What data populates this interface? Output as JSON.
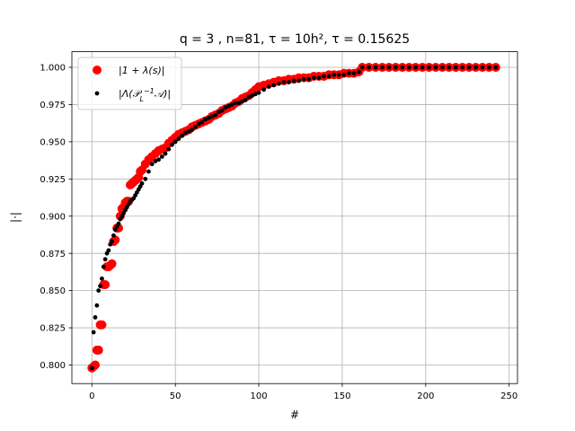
{
  "chart_data": {
    "type": "scatter",
    "title": "q = 3 , n=81, τ = 10h², τ = 0.15625",
    "xlabel": "#",
    "ylabel": "|·|",
    "xlim": [
      -12,
      255
    ],
    "ylim": [
      0.7875,
      1.0105
    ],
    "xticks": [
      0,
      50,
      100,
      150,
      200,
      250
    ],
    "xtick_labels": [
      "0",
      "50",
      "100",
      "150",
      "200",
      "250"
    ],
    "yticks": [
      0.8,
      0.825,
      0.85,
      0.875,
      0.9,
      0.925,
      0.95,
      0.975,
      1.0
    ],
    "ytick_labels": [
      "0.800",
      "0.825",
      "0.850",
      "0.875",
      "0.900",
      "0.925",
      "0.950",
      "0.975",
      "1.000"
    ],
    "grid": true,
    "legend_position": "top-left",
    "count": 243,
    "series": [
      {
        "name": "|1 + λ(s)|",
        "color": "#ff0000",
        "marker": "large-circle",
        "points": [
          [
            0,
            0.798
          ],
          [
            1,
            0.799
          ],
          [
            2,
            0.8
          ],
          [
            3,
            0.81
          ],
          [
            4,
            0.81
          ],
          [
            5,
            0.827
          ],
          [
            6,
            0.827
          ],
          [
            7,
            0.854
          ],
          [
            8,
            0.854
          ],
          [
            9,
            0.866
          ],
          [
            10,
            0.866
          ],
          [
            11,
            0.867
          ],
          [
            12,
            0.868
          ],
          [
            13,
            0.883
          ],
          [
            14,
            0.884
          ],
          [
            15,
            0.892
          ],
          [
            16,
            0.892
          ],
          [
            17,
            0.9
          ],
          [
            18,
            0.905
          ],
          [
            19,
            0.906
          ],
          [
            20,
            0.909
          ],
          [
            21,
            0.91
          ],
          [
            22,
            0.91
          ],
          [
            23,
            0.921
          ],
          [
            24,
            0.922
          ],
          [
            25,
            0.923
          ],
          [
            26,
            0.924
          ],
          [
            27,
            0.925
          ],
          [
            28,
            0.926
          ],
          [
            29,
            0.93
          ],
          [
            30,
            0.931
          ],
          [
            32,
            0.935
          ],
          [
            34,
            0.938
          ],
          [
            36,
            0.94
          ],
          [
            38,
            0.942
          ],
          [
            40,
            0.944
          ],
          [
            42,
            0.945
          ],
          [
            44,
            0.946
          ],
          [
            46,
            0.949
          ],
          [
            48,
            0.951
          ],
          [
            50,
            0.953
          ],
          [
            52,
            0.955
          ],
          [
            54,
            0.956
          ],
          [
            56,
            0.957
          ],
          [
            58,
            0.958
          ],
          [
            60,
            0.96
          ],
          [
            62,
            0.961
          ],
          [
            64,
            0.962
          ],
          [
            66,
            0.963
          ],
          [
            68,
            0.964
          ],
          [
            70,
            0.965
          ],
          [
            72,
            0.967
          ],
          [
            74,
            0.968
          ],
          [
            76,
            0.969
          ],
          [
            78,
            0.971
          ],
          [
            80,
            0.972
          ],
          [
            82,
            0.973
          ],
          [
            84,
            0.974
          ],
          [
            86,
            0.976
          ],
          [
            88,
            0.977
          ],
          [
            90,
            0.979
          ],
          [
            92,
            0.98
          ],
          [
            94,
            0.981
          ],
          [
            96,
            0.983
          ],
          [
            98,
            0.985
          ],
          [
            100,
            0.987
          ],
          [
            103,
            0.988
          ],
          [
            106,
            0.989
          ],
          [
            109,
            0.99
          ],
          [
            112,
            0.991
          ],
          [
            115,
            0.991
          ],
          [
            118,
            0.992
          ],
          [
            121,
            0.992
          ],
          [
            124,
            0.993
          ],
          [
            127,
            0.993
          ],
          [
            130,
            0.993
          ],
          [
            133,
            0.994
          ],
          [
            136,
            0.994
          ],
          [
            139,
            0.994
          ],
          [
            142,
            0.995
          ],
          [
            145,
            0.995
          ],
          [
            148,
            0.995
          ],
          [
            151,
            0.996
          ],
          [
            154,
            0.996
          ],
          [
            157,
            0.996
          ],
          [
            160,
            0.997
          ],
          [
            162,
            1.0
          ],
          [
            166,
            1.0
          ],
          [
            170,
            1.0
          ],
          [
            174,
            1.0
          ],
          [
            178,
            1.0
          ],
          [
            182,
            1.0
          ],
          [
            186,
            1.0
          ],
          [
            190,
            1.0
          ],
          [
            194,
            1.0
          ],
          [
            198,
            1.0
          ],
          [
            202,
            1.0
          ],
          [
            206,
            1.0
          ],
          [
            210,
            1.0
          ],
          [
            214,
            1.0
          ],
          [
            218,
            1.0
          ],
          [
            222,
            1.0
          ],
          [
            226,
            1.0
          ],
          [
            230,
            1.0
          ],
          [
            234,
            1.0
          ],
          [
            238,
            1.0
          ],
          [
            242,
            1.0
          ]
        ]
      },
      {
        "name": "|Λ(P_L⁻¹ A)|",
        "color": "#000000",
        "marker": "small-dot",
        "points": [
          [
            0,
            0.798
          ],
          [
            1,
            0.822
          ],
          [
            2,
            0.832
          ],
          [
            3,
            0.84
          ],
          [
            4,
            0.85
          ],
          [
            5,
            0.853
          ],
          [
            6,
            0.858
          ],
          [
            7,
            0.866
          ],
          [
            8,
            0.871
          ],
          [
            9,
            0.875
          ],
          [
            10,
            0.877
          ],
          [
            11,
            0.881
          ],
          [
            12,
            0.883
          ],
          [
            13,
            0.887
          ],
          [
            14,
            0.891
          ],
          [
            15,
            0.893
          ],
          [
            16,
            0.895
          ],
          [
            17,
            0.898
          ],
          [
            18,
            0.9
          ],
          [
            19,
            0.902
          ],
          [
            20,
            0.904
          ],
          [
            21,
            0.906
          ],
          [
            22,
            0.908
          ],
          [
            23,
            0.91
          ],
          [
            24,
            0.911
          ],
          [
            25,
            0.912
          ],
          [
            26,
            0.914
          ],
          [
            27,
            0.916
          ],
          [
            28,
            0.918
          ],
          [
            29,
            0.92
          ],
          [
            30,
            0.922
          ],
          [
            32,
            0.925
          ],
          [
            34,
            0.93
          ],
          [
            36,
            0.935
          ],
          [
            38,
            0.937
          ],
          [
            40,
            0.938
          ],
          [
            42,
            0.94
          ],
          [
            44,
            0.942
          ],
          [
            46,
            0.945
          ],
          [
            48,
            0.948
          ],
          [
            50,
            0.95
          ],
          [
            52,
            0.952
          ],
          [
            54,
            0.954
          ],
          [
            56,
            0.956
          ],
          [
            58,
            0.957
          ],
          [
            60,
            0.958
          ],
          [
            62,
            0.96
          ],
          [
            64,
            0.962
          ],
          [
            66,
            0.963
          ],
          [
            68,
            0.965
          ],
          [
            70,
            0.966
          ],
          [
            72,
            0.967
          ],
          [
            74,
            0.968
          ],
          [
            76,
            0.97
          ],
          [
            78,
            0.971
          ],
          [
            80,
            0.973
          ],
          [
            82,
            0.974
          ],
          [
            84,
            0.975
          ],
          [
            86,
            0.976
          ],
          [
            88,
            0.976
          ],
          [
            90,
            0.977
          ],
          [
            92,
            0.978
          ],
          [
            94,
            0.98
          ],
          [
            96,
            0.981
          ],
          [
            98,
            0.982
          ],
          [
            100,
            0.983
          ],
          [
            103,
            0.985
          ],
          [
            106,
            0.987
          ],
          [
            109,
            0.988
          ],
          [
            112,
            0.989
          ],
          [
            115,
            0.99
          ],
          [
            118,
            0.99
          ],
          [
            121,
            0.991
          ],
          [
            124,
            0.991
          ],
          [
            127,
            0.992
          ],
          [
            130,
            0.992
          ],
          [
            133,
            0.993
          ],
          [
            136,
            0.993
          ],
          [
            139,
            0.994
          ],
          [
            142,
            0.994
          ],
          [
            145,
            0.995
          ],
          [
            148,
            0.995
          ],
          [
            151,
            0.995
          ],
          [
            154,
            0.996
          ],
          [
            157,
            0.996
          ],
          [
            160,
            0.997
          ],
          [
            162,
            1.0
          ],
          [
            166,
            1.0
          ],
          [
            170,
            1.0
          ],
          [
            174,
            1.0
          ],
          [
            178,
            1.0
          ],
          [
            182,
            1.0
          ],
          [
            186,
            1.0
          ],
          [
            190,
            1.0
          ],
          [
            194,
            1.0
          ],
          [
            198,
            1.0
          ],
          [
            202,
            1.0
          ],
          [
            206,
            1.0
          ],
          [
            210,
            1.0
          ],
          [
            214,
            1.0
          ],
          [
            218,
            1.0
          ],
          [
            222,
            1.0
          ],
          [
            226,
            1.0
          ],
          [
            230,
            1.0
          ],
          [
            234,
            1.0
          ],
          [
            238,
            1.0
          ],
          [
            242,
            1.0
          ]
        ]
      }
    ]
  }
}
